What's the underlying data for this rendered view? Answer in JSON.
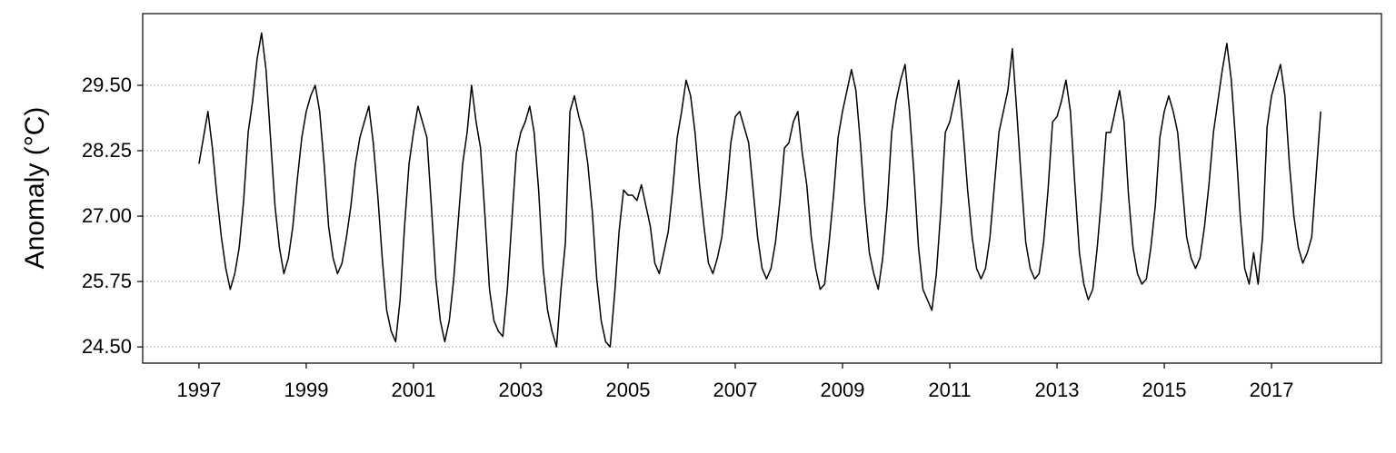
{
  "chart_data": {
    "type": "line",
    "ylabel": "Anomaly (°C)",
    "color": "#000000",
    "grid": true,
    "xlim": [
      1995.95,
      2019.05
    ],
    "xticks": [
      1997,
      1999,
      2001,
      2003,
      2005,
      2007,
      2009,
      2011,
      2013,
      2015,
      2017
    ],
    "ylim": [
      24.19,
      30.87
    ],
    "yticks": [
      {
        "value": 24.5,
        "label": "24.50"
      },
      {
        "value": 25.75,
        "label": "25.75"
      },
      {
        "value": 27,
        "label": "27.00"
      },
      {
        "value": 28.25,
        "label": "28.25"
      },
      {
        "value": 29.5,
        "label": "29.50"
      }
    ],
    "x": [
      1997,
      1997.083,
      1997.167,
      1997.25,
      1997.333,
      1997.417,
      1997.5,
      1997.583,
      1997.667,
      1997.75,
      1997.833,
      1997.917,
      1998,
      1998.083,
      1998.167,
      1998.25,
      1998.333,
      1998.417,
      1998.5,
      1998.583,
      1998.667,
      1998.75,
      1998.833,
      1998.917,
      1999,
      1999.083,
      1999.167,
      1999.25,
      1999.333,
      1999.417,
      1999.5,
      1999.583,
      1999.667,
      1999.75,
      1999.833,
      1999.917,
      2000,
      2000.083,
      2000.167,
      2000.25,
      2000.333,
      2000.417,
      2000.5,
      2000.583,
      2000.667,
      2000.75,
      2000.833,
      2000.917,
      2001,
      2001.083,
      2001.167,
      2001.25,
      2001.333,
      2001.417,
      2001.5,
      2001.583,
      2001.667,
      2001.75,
      2001.833,
      2001.917,
      2002,
      2002.083,
      2002.167,
      2002.25,
      2002.333,
      2002.417,
      2002.5,
      2002.583,
      2002.667,
      2002.75,
      2002.833,
      2002.917,
      2003,
      2003.083,
      2003.167,
      2003.25,
      2003.333,
      2003.417,
      2003.5,
      2003.583,
      2003.667,
      2003.75,
      2003.833,
      2003.917,
      2004,
      2004.083,
      2004.167,
      2004.25,
      2004.333,
      2004.417,
      2004.5,
      2004.583,
      2004.667,
      2004.75,
      2004.833,
      2004.917,
      2005,
      2005.083,
      2005.167,
      2005.25,
      2005.333,
      2005.417,
      2005.5,
      2005.583,
      2005.667,
      2005.75,
      2005.833,
      2005.917,
      2006,
      2006.083,
      2006.167,
      2006.25,
      2006.333,
      2006.417,
      2006.5,
      2006.583,
      2006.667,
      2006.75,
      2006.833,
      2006.917,
      2007,
      2007.083,
      2007.167,
      2007.25,
      2007.333,
      2007.417,
      2007.5,
      2007.583,
      2007.667,
      2007.75,
      2007.833,
      2007.917,
      2008,
      2008.083,
      2008.167,
      2008.25,
      2008.333,
      2008.417,
      2008.5,
      2008.583,
      2008.667,
      2008.75,
      2008.833,
      2008.917,
      2009,
      2009.083,
      2009.167,
      2009.25,
      2009.333,
      2009.417,
      2009.5,
      2009.583,
      2009.667,
      2009.75,
      2009.833,
      2009.917,
      2010,
      2010.083,
      2010.167,
      2010.25,
      2010.333,
      2010.417,
      2010.5,
      2010.583,
      2010.667,
      2010.75,
      2010.833,
      2010.917,
      2011,
      2011.083,
      2011.167,
      2011.25,
      2011.333,
      2011.417,
      2011.5,
      2011.583,
      2011.667,
      2011.75,
      2011.833,
      2011.917,
      2012,
      2012.083,
      2012.167,
      2012.25,
      2012.333,
      2012.417,
      2012.5,
      2012.583,
      2012.667,
      2012.75,
      2012.833,
      2012.917,
      2013,
      2013.083,
      2013.167,
      2013.25,
      2013.333,
      2013.417,
      2013.5,
      2013.583,
      2013.667,
      2013.75,
      2013.833,
      2013.917,
      2014,
      2014.083,
      2014.167,
      2014.25,
      2014.333,
      2014.417,
      2014.5,
      2014.583,
      2014.667,
      2014.75,
      2014.833,
      2014.917,
      2015,
      2015.083,
      2015.167,
      2015.25,
      2015.333,
      2015.417,
      2015.5,
      2015.583,
      2015.667,
      2015.75,
      2015.833,
      2015.917,
      2016,
      2016.083,
      2016.167,
      2016.25,
      2016.333,
      2016.417,
      2016.5,
      2016.583,
      2016.667,
      2016.75,
      2016.833,
      2016.917,
      2017,
      2017.083,
      2017.167,
      2017.25,
      2017.333,
      2017.417,
      2017.5,
      2017.583,
      2017.667,
      2017.75,
      2017.833,
      2017.917
    ],
    "values": [
      28.0,
      28.5,
      29.0,
      28.3,
      27.4,
      26.6,
      26.0,
      25.6,
      25.9,
      26.4,
      27.3,
      28.6,
      29.2,
      30.0,
      30.5,
      29.8,
      28.5,
      27.2,
      26.4,
      25.9,
      26.2,
      26.8,
      27.7,
      28.5,
      29.0,
      29.3,
      29.5,
      29.0,
      28.0,
      26.8,
      26.2,
      25.9,
      26.1,
      26.6,
      27.2,
      28.0,
      28.5,
      28.8,
      29.1,
      28.4,
      27.4,
      26.2,
      25.2,
      24.8,
      24.6,
      25.4,
      26.8,
      28.0,
      28.6,
      29.1,
      28.8,
      28.5,
      27.2,
      25.8,
      25.0,
      24.6,
      25.0,
      25.8,
      26.9,
      28.0,
      28.6,
      29.5,
      28.8,
      28.3,
      27.0,
      25.6,
      25.0,
      24.8,
      24.7,
      25.6,
      26.9,
      28.2,
      28.6,
      28.8,
      29.1,
      28.6,
      27.5,
      26.0,
      25.2,
      24.8,
      24.5,
      25.6,
      26.5,
      29.0,
      29.3,
      28.9,
      28.6,
      28.0,
      27.1,
      25.8,
      25.0,
      24.6,
      24.5,
      25.5,
      26.7,
      27.5,
      27.4,
      27.4,
      27.3,
      27.6,
      27.2,
      26.8,
      26.1,
      25.9,
      26.3,
      26.7,
      27.5,
      28.5,
      29.0,
      29.6,
      29.3,
      28.6,
      27.6,
      26.8,
      26.1,
      25.9,
      26.2,
      26.6,
      27.4,
      28.4,
      28.9,
      29.0,
      28.7,
      28.4,
      27.5,
      26.6,
      26.0,
      25.8,
      26.0,
      26.5,
      27.3,
      28.3,
      28.4,
      28.8,
      29.0,
      28.2,
      27.6,
      26.6,
      26.0,
      25.6,
      25.7,
      26.5,
      27.4,
      28.5,
      29.0,
      29.4,
      29.8,
      29.4,
      28.4,
      27.2,
      26.3,
      25.9,
      25.6,
      26.2,
      27.2,
      28.6,
      29.2,
      29.6,
      29.9,
      29.0,
      27.8,
      26.4,
      25.6,
      25.4,
      25.2,
      25.9,
      27.1,
      28.6,
      28.8,
      29.2,
      29.6,
      28.6,
      27.5,
      26.6,
      26.0,
      25.8,
      26.0,
      26.6,
      27.6,
      28.6,
      29.0,
      29.4,
      30.2,
      29.0,
      27.7,
      26.5,
      26.0,
      25.8,
      25.9,
      26.5,
      27.5,
      28.8,
      28.9,
      29.2,
      29.6,
      29.0,
      27.6,
      26.3,
      25.7,
      25.4,
      25.6,
      26.4,
      27.4,
      28.6,
      28.6,
      29.0,
      29.4,
      28.8,
      27.4,
      26.4,
      25.9,
      25.7,
      25.8,
      26.4,
      27.2,
      28.5,
      29.0,
      29.3,
      29.0,
      28.6,
      27.6,
      26.6,
      26.2,
      26.0,
      26.2,
      26.8,
      27.6,
      28.6,
      29.2,
      29.8,
      30.3,
      29.6,
      28.4,
      27.0,
      26.0,
      25.7,
      26.3,
      25.7,
      26.6,
      28.7,
      29.3,
      29.6,
      29.9,
      29.3,
      28.0,
      27.0,
      26.4,
      26.1,
      26.3,
      26.6,
      27.8,
      29.0
    ]
  }
}
